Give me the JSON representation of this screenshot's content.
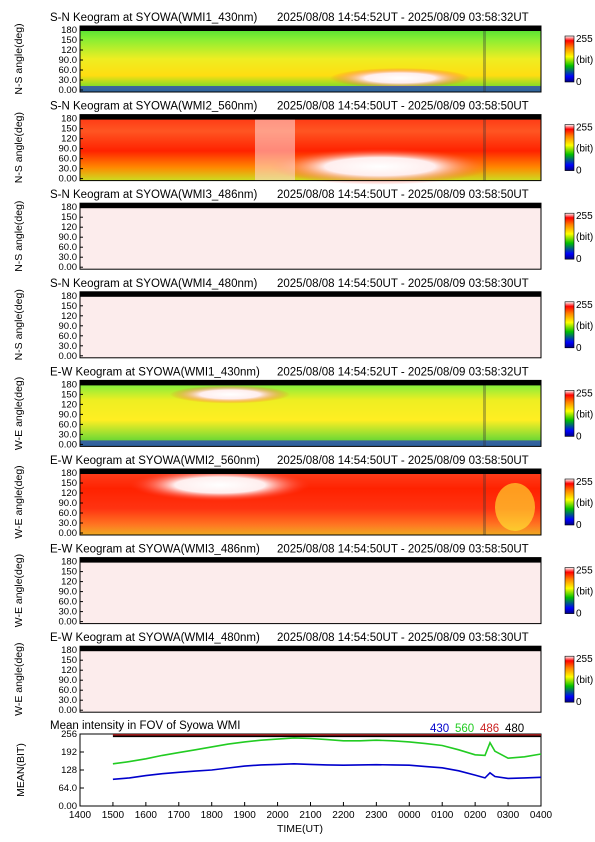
{
  "panels": [
    {
      "title": "S-N Keogram at SYOWA(WMI1_430nm)",
      "time_range": "2025/08/08 14:54:52UT - 2025/08/09 03:58:32UT",
      "ylabel": "N-S angle(deg)",
      "pattern": "green430"
    },
    {
      "title": "S-N Keogram at SYOWA(WMI2_560nm)",
      "time_range": "2025/08/08 14:54:50UT - 2025/08/09 03:58:50UT",
      "ylabel": "N-S angle(deg)",
      "pattern": "red560"
    },
    {
      "title": "S-N Keogram at SYOWA(WMI3_486nm)",
      "time_range": "2025/08/08 14:54:50UT - 2025/08/09 03:58:50UT",
      "ylabel": "N-S angle(deg)",
      "pattern": "pale"
    },
    {
      "title": "S-N Keogram at SYOWA(WMI4_480nm)",
      "time_range": "2025/08/08 14:54:50UT - 2025/08/09 03:58:30UT",
      "ylabel": "N-S angle(deg)",
      "pattern": "pale"
    },
    {
      "title": "E-W Keogram at SYOWA(WMI1_430nm)",
      "time_range": "2025/08/08 14:54:52UT - 2025/08/09 03:58:32UT",
      "ylabel": "W-E angle(deg)",
      "pattern": "green430ew"
    },
    {
      "title": "E-W Keogram at SYOWA(WMI2_560nm)",
      "time_range": "2025/08/08 14:54:50UT - 2025/08/09 03:58:50UT",
      "ylabel": "W-E angle(deg)",
      "pattern": "red560ew"
    },
    {
      "title": "E-W Keogram at SYOWA(WMI3_486nm)",
      "time_range": "2025/08/08 14:54:50UT - 2025/08/09 03:58:50UT",
      "ylabel": "W-E angle(deg)",
      "pattern": "pale"
    },
    {
      "title": "E-W Keogram at SYOWA(WMI4_480nm)",
      "time_range": "2025/08/08 14:54:50UT - 2025/08/09 03:58:30UT",
      "ylabel": "W-E angle(deg)",
      "pattern": "pale"
    }
  ],
  "keogram_yticks": [
    "180",
    "150",
    "120",
    "90.0",
    "60.0",
    "30.0",
    "0.00"
  ],
  "colorbar": {
    "max_label": "255",
    "unit": "(bit)",
    "min_label": "0"
  },
  "chart_data": {
    "type": "line",
    "title": "Mean intensity in FOV of Syowa WMI",
    "xlabel": "TIME(UT)",
    "ylabel": "MEAN(BIT)",
    "x_ticks": [
      "1400",
      "1500",
      "1600",
      "1700",
      "1800",
      "1900",
      "2000",
      "2100",
      "2200",
      "2300",
      "0000",
      "0100",
      "0200",
      "0300",
      "0400"
    ],
    "y_ticks": [
      "256",
      "192",
      "128",
      "64.0",
      "0.00"
    ],
    "ylim": [
      0,
      256
    ],
    "x": [
      15.0,
      15.5,
      16.0,
      16.5,
      17.0,
      17.5,
      18.0,
      18.5,
      19.0,
      19.5,
      20.0,
      20.5,
      21.0,
      21.5,
      22.0,
      22.5,
      23.0,
      23.5,
      24.0,
      24.5,
      25.0,
      25.5,
      26.0,
      26.3,
      26.45,
      26.6,
      27.0,
      27.5,
      28.0
    ],
    "series": [
      {
        "name": "430",
        "color": "#0000cc",
        "values": [
          95,
          100,
          108,
          115,
          120,
          124,
          128,
          135,
          142,
          146,
          148,
          150,
          148,
          146,
          145,
          146,
          147,
          146,
          145,
          140,
          136,
          125,
          110,
          100,
          118,
          105,
          98,
          100,
          102
        ]
      },
      {
        "name": "560",
        "color": "#22cc22",
        "values": [
          150,
          158,
          168,
          180,
          190,
          200,
          210,
          220,
          228,
          234,
          238,
          242,
          240,
          236,
          232,
          232,
          234,
          232,
          228,
          222,
          215,
          200,
          182,
          180,
          225,
          195,
          170,
          175,
          185
        ]
      },
      {
        "name": "486",
        "color": "#cc2222",
        "values": [
          252,
          252,
          252,
          252,
          252,
          252,
          252,
          252,
          252,
          252,
          252,
          252,
          252,
          252,
          252,
          252,
          252,
          252,
          252,
          252,
          252,
          252,
          252,
          252,
          252,
          252,
          252,
          252,
          252
        ]
      },
      {
        "name": "480",
        "color": "#000000",
        "values": [
          248,
          248,
          248,
          248,
          248,
          248,
          248,
          248,
          248,
          248,
          248,
          248,
          248,
          248,
          248,
          248,
          248,
          248,
          248,
          248,
          248,
          248,
          248,
          248,
          248,
          248,
          248,
          248,
          248
        ]
      }
    ]
  }
}
